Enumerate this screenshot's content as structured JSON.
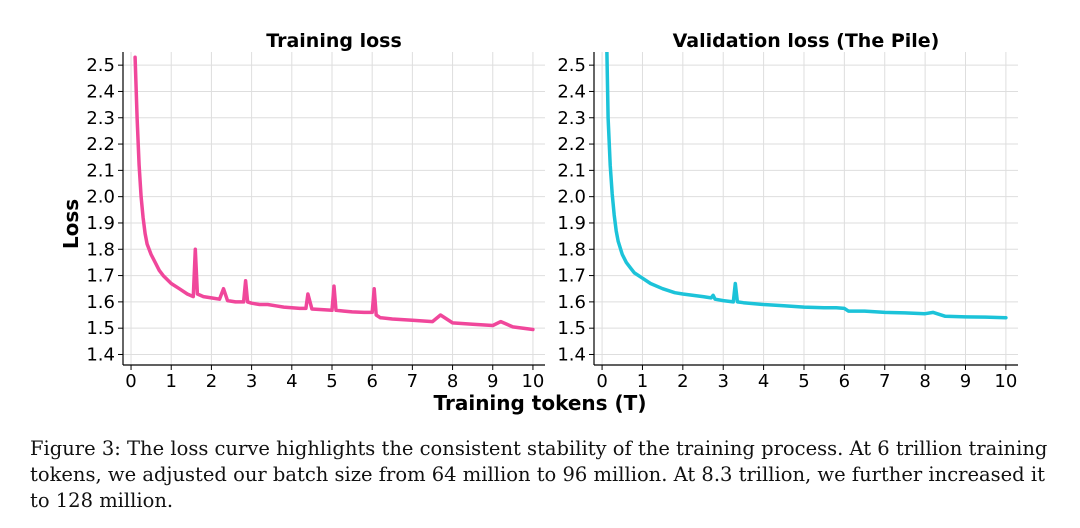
{
  "figure": {
    "caption": "Figure 3: The loss curve highlights the consistent stability of the training process. At 6 trillion training tokens, we adjusted our batch size from 64 million to 96 million. At 8.3 trillion, we further increased it to 128 million.",
    "shared_xlabel": "Training tokens (T)",
    "shared_ylabel": "Loss"
  },
  "chart_data": [
    {
      "type": "line",
      "title": "Training loss",
      "xlabel": "Training tokens (T)",
      "ylabel": "Loss",
      "xlim": [
        -0.2,
        10.3
      ],
      "ylim": [
        1.36,
        2.55
      ],
      "xticks": [
        0,
        1,
        2,
        3,
        4,
        5,
        6,
        7,
        8,
        9,
        10
      ],
      "yticks": [
        1.4,
        1.5,
        1.6,
        1.7,
        1.8,
        1.9,
        2.0,
        2.1,
        2.2,
        2.3,
        2.4,
        2.5
      ],
      "grid": true,
      "color": "#f0479b",
      "series": [
        {
          "x": [
            0.1,
            0.15,
            0.2,
            0.25,
            0.3,
            0.35,
            0.4,
            0.5,
            0.6,
            0.7,
            0.8,
            1.0,
            1.2,
            1.4,
            1.55,
            1.6,
            1.65,
            1.8,
            2.0,
            2.2,
            2.3,
            2.4,
            2.6,
            2.8,
            2.85,
            2.9,
            3.0,
            3.2,
            3.4,
            3.6,
            3.8,
            4.0,
            4.2,
            4.35,
            4.4,
            4.5,
            4.8,
            5.0,
            5.05,
            5.1,
            5.3,
            5.5,
            5.8,
            6.0,
            6.05,
            6.1,
            6.2,
            6.5,
            7.0,
            7.5,
            7.7,
            8.0,
            8.5,
            9.0,
            9.2,
            9.5,
            10.0
          ],
          "y": [
            2.53,
            2.3,
            2.12,
            2.0,
            1.92,
            1.86,
            1.82,
            1.78,
            1.75,
            1.72,
            1.7,
            1.67,
            1.65,
            1.63,
            1.62,
            1.8,
            1.63,
            1.62,
            1.615,
            1.61,
            1.65,
            1.605,
            1.6,
            1.6,
            1.68,
            1.6,
            1.595,
            1.59,
            1.59,
            1.585,
            1.58,
            1.578,
            1.575,
            1.575,
            1.63,
            1.573,
            1.57,
            1.568,
            1.66,
            1.568,
            1.565,
            1.562,
            1.56,
            1.56,
            1.65,
            1.55,
            1.54,
            1.535,
            1.53,
            1.525,
            1.55,
            1.52,
            1.515,
            1.51,
            1.525,
            1.505,
            1.495
          ]
        }
      ]
    },
    {
      "type": "line",
      "title": "Validation loss (The Pile)",
      "xlabel": "Training tokens (T)",
      "xlim": [
        -0.2,
        10.3
      ],
      "ylim": [
        1.36,
        2.55
      ],
      "xticks": [
        0,
        1,
        2,
        3,
        4,
        5,
        6,
        7,
        8,
        9,
        10
      ],
      "yticks": [
        1.4,
        1.5,
        1.6,
        1.7,
        1.8,
        1.9,
        2.0,
        2.1,
        2.2,
        2.3,
        2.4,
        2.5
      ],
      "grid": true,
      "color": "#1cc3d9",
      "series": [
        {
          "x": [
            0.12,
            0.15,
            0.2,
            0.25,
            0.3,
            0.35,
            0.4,
            0.5,
            0.6,
            0.7,
            0.8,
            1.0,
            1.2,
            1.5,
            1.8,
            2.0,
            2.5,
            2.7,
            2.75,
            2.8,
            3.0,
            3.25,
            3.3,
            3.35,
            3.5,
            4.0,
            4.5,
            5.0,
            5.5,
            5.8,
            6.0,
            6.1,
            6.5,
            7.0,
            7.5,
            8.0,
            8.2,
            8.5,
            9.0,
            9.5,
            10.0
          ],
          "y": [
            2.55,
            2.3,
            2.12,
            2.01,
            1.93,
            1.87,
            1.83,
            1.78,
            1.75,
            1.73,
            1.71,
            1.69,
            1.67,
            1.65,
            1.635,
            1.63,
            1.62,
            1.615,
            1.625,
            1.61,
            1.605,
            1.6,
            1.67,
            1.6,
            1.597,
            1.59,
            1.585,
            1.58,
            1.578,
            1.578,
            1.575,
            1.565,
            1.565,
            1.56,
            1.558,
            1.555,
            1.56,
            1.545,
            1.543,
            1.542,
            1.54
          ]
        }
      ]
    }
  ]
}
